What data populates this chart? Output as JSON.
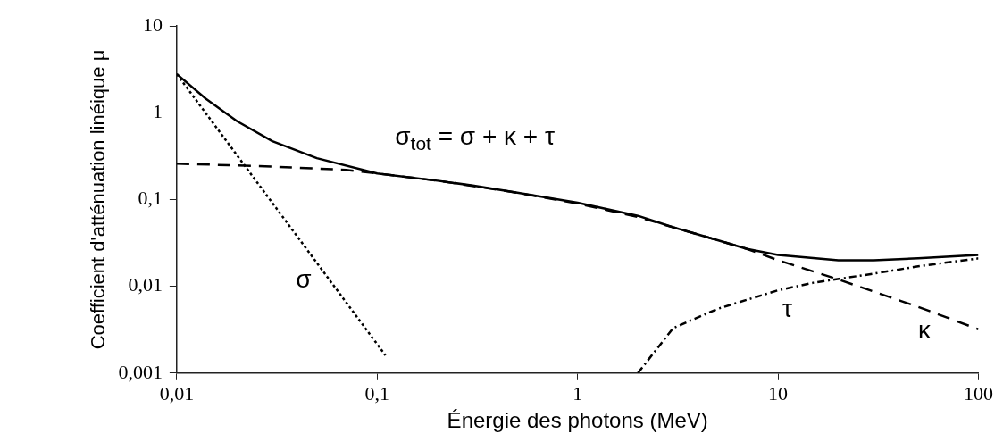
{
  "chart_data": {
    "type": "line",
    "xlabel": "Énergie des photons (MeV)",
    "ylabel": "Coefficient d'atténuation linéique μ",
    "log": "xy",
    "grid": false,
    "legend": false,
    "marker": "none",
    "xlim": [
      0.01,
      100
    ],
    "ylim": [
      0.001,
      10
    ],
    "xticks": [
      {
        "value": 0.01,
        "label": "0,01"
      },
      {
        "value": 0.1,
        "label": "0,1"
      },
      1,
      10,
      100
    ],
    "yticks": [
      {
        "value": 0.001,
        "label": "0,001"
      },
      {
        "value": 0.01,
        "label": "0,01"
      },
      {
        "value": 0.1,
        "label": "0,1"
      },
      1,
      10
    ],
    "series": [
      {
        "name": "σ$_{tot}$ = σ + κ + τ",
        "color": "#000000",
        "line_style": "solid",
        "x": [
          0.01,
          0.014,
          0.02,
          0.03,
          0.05,
          0.1,
          0.2,
          0.3,
          0.5,
          1,
          2,
          3,
          5,
          7,
          10,
          20,
          30,
          50,
          100
        ],
        "values": [
          2.8,
          1.45,
          0.8,
          0.47,
          0.3,
          0.2,
          0.165,
          0.145,
          0.12,
          0.092,
          0.065,
          0.048,
          0.034,
          0.027,
          0.023,
          0.02,
          0.02,
          0.021,
          0.023
        ]
      },
      {
        "name": "κ",
        "color": "#000000",
        "line_style": "dashed",
        "x": [
          0.01,
          0.03,
          0.07,
          0.1,
          0.2,
          0.5,
          1,
          2,
          5,
          7,
          10,
          20,
          50,
          100
        ],
        "values": [
          0.26,
          0.24,
          0.22,
          0.2,
          0.165,
          0.12,
          0.09,
          0.063,
          0.034,
          0.027,
          0.02,
          0.012,
          0.0058,
          0.0032
        ]
      },
      {
        "name": "σ",
        "color": "#000000",
        "line_style": "dotted",
        "x": [
          0.01,
          0.11
        ],
        "values": [
          2.8,
          0.0016
        ]
      },
      {
        "name": "τ",
        "color": "#000000",
        "line_style": "dashdot",
        "x": [
          2,
          3,
          5,
          7,
          10,
          15,
          30,
          50,
          100
        ],
        "values": [
          0.001,
          0.0033,
          0.0055,
          0.007,
          0.009,
          0.011,
          0.014,
          0.017,
          0.021
        ]
      }
    ]
  }
}
